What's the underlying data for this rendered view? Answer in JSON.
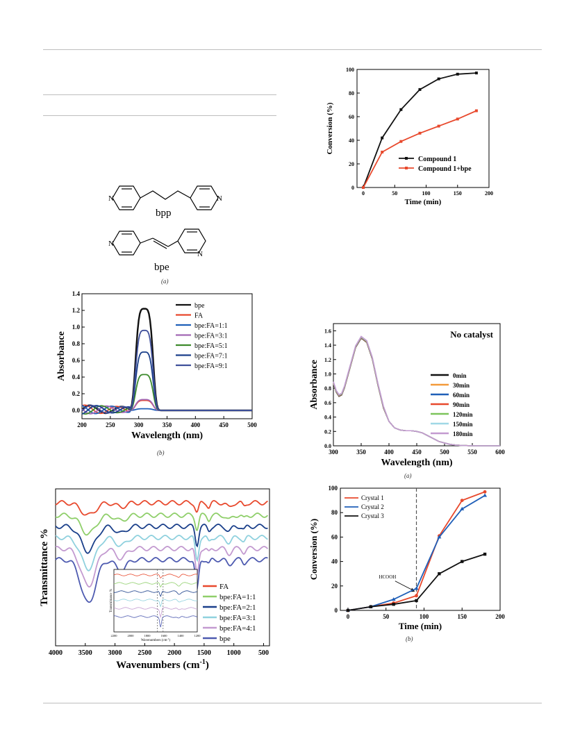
{
  "colors": {
    "black": "#111111",
    "red": "#e8492d",
    "blue": "#1f5fb8",
    "navy": "#1a3f8a",
    "purple": "#a268b5",
    "green": "#3d8a2c",
    "slate": "#3f4f9a",
    "orange": "#f39a3a",
    "lime": "#7cc45a",
    "lightcyan": "#9fd8e6",
    "lavender": "#c39ad0",
    "royal": "#4d5ab0",
    "ltgreen": "#8fcf6a",
    "cyan": "#8fd1de"
  },
  "structures": {
    "top": {
      "label": "bpp",
      "n_left": "N",
      "n_right": "N"
    },
    "bottom": {
      "label": "bpe",
      "n_left": "N",
      "n_right": "N"
    },
    "caption": "(a)"
  },
  "captions": {
    "uv_bpe_fa": "(b)",
    "uv_no_catalyst": "(a)",
    "conversion_crystals": "(b)"
  },
  "charts": {
    "conversion_compound": {
      "xlabel": "Time (min)",
      "ylabel": "Conversion (%)",
      "xticks": [
        "0",
        "50",
        "100",
        "150",
        "200"
      ],
      "yticks": [
        "0",
        "20",
        "40",
        "60",
        "80",
        "100"
      ]
    },
    "uv_bpe_fa": {
      "xlabel": "Wavelength (nm)",
      "ylabel": "Absorbance",
      "xticks": [
        "200",
        "250",
        "300",
        "350",
        "400",
        "450",
        "500"
      ],
      "yticks": [
        "0.0",
        "0.2",
        "0.4",
        "0.6",
        "0.8",
        "1.0",
        "1.2",
        "1.4"
      ]
    },
    "uv_no_catalyst": {
      "xlabel": "Wavelength (nm)",
      "ylabel": "Absorbance",
      "annotation": "No catalyst",
      "xticks": [
        "300",
        "350",
        "400",
        "450",
        "500",
        "550",
        "600"
      ],
      "yticks": [
        "0.0",
        "0.2",
        "0.4",
        "0.6",
        "0.8",
        "1.0",
        "1.2",
        "1.4",
        "1.6"
      ]
    },
    "ftir": {
      "xlabel": "Wavenumbers (cm",
      "xlabel_sup": "-1",
      "xlabel_end": ")",
      "ylabel": "Transmittance %",
      "xticks": [
        "4000",
        "3500",
        "3000",
        "2500",
        "2000",
        "1500",
        "1000",
        "500"
      ],
      "inset": {
        "ylabel": "Transmittance %",
        "xlabel": "Wavenumbers (cm",
        "xlabel_sup": "-1",
        "xlabel_end": ")",
        "xticks": [
          "2200",
          "2000",
          "1800",
          "1600",
          "1400",
          "1200"
        ]
      }
    },
    "conversion_crystals": {
      "xlabel": "Time (min)",
      "ylabel": "Conversion (%)",
      "annotation": "HCOOH",
      "xticks": [
        "0",
        "50",
        "100",
        "150",
        "200"
      ],
      "yticks": [
        "0",
        "20",
        "40",
        "60",
        "80",
        "100"
      ]
    }
  },
  "chart_data": [
    {
      "type": "line",
      "x": [
        0,
        30,
        60,
        90,
        120,
        150,
        180
      ],
      "series": [
        {
          "name": "Compound 1",
          "values": [
            0,
            42,
            66,
            83,
            92,
            96,
            97
          ]
        },
        {
          "name": "Compound 1+bpe",
          "values": [
            0,
            30,
            39,
            46,
            52,
            58,
            65
          ]
        }
      ],
      "xlabel": "Time (min)",
      "ylabel": "Conversion (%)",
      "xlim": [
        -10,
        200
      ],
      "ylim": [
        0,
        100
      ],
      "legend": "bottom-right"
    },
    {
      "type": "line",
      "series": [
        {
          "name": "bpe",
          "peak": 1.22
        },
        {
          "name": "FA",
          "peak": 0.12
        },
        {
          "name": "bpe:FA=1:1",
          "peak": 0.02
        },
        {
          "name": "bpe:FA=3:1",
          "peak": 0.13
        },
        {
          "name": "bpe:FA=5:1",
          "peak": 0.43
        },
        {
          "name": "bpe:FA=7:1",
          "peak": 0.7
        },
        {
          "name": "bpe:FA=9:1",
          "peak": 0.96
        }
      ],
      "peak_x": 310,
      "xlabel": "Wavelength (nm)",
      "ylabel": "Absorbance",
      "xlim": [
        200,
        500
      ],
      "ylim": [
        -0.1,
        1.4
      ],
      "legend": "top-right"
    },
    {
      "type": "line",
      "series": [
        {
          "name": "0min"
        },
        {
          "name": "30min"
        },
        {
          "name": "60min"
        },
        {
          "name": "90min"
        },
        {
          "name": "120min"
        },
        {
          "name": "150min"
        },
        {
          "name": "180min"
        }
      ],
      "profile_x": [
        300,
        305,
        310,
        315,
        320,
        330,
        340,
        350,
        360,
        370,
        380,
        390,
        400,
        410,
        420,
        430,
        440,
        450,
        460,
        470,
        480,
        490,
        500,
        510,
        520,
        530,
        550,
        600
      ],
      "profile_y": [
        0.88,
        0.76,
        0.7,
        0.72,
        0.82,
        1.1,
        1.38,
        1.51,
        1.45,
        1.22,
        0.86,
        0.54,
        0.34,
        0.25,
        0.22,
        0.21,
        0.21,
        0.2,
        0.18,
        0.14,
        0.1,
        0.06,
        0.04,
        0.02,
        0.01,
        0.005,
        0.0,
        0.0
      ],
      "annotation": "No catalyst",
      "xlabel": "Wavelength (nm)",
      "ylabel": "Absorbance",
      "xlim": [
        300,
        600
      ],
      "ylim": [
        0,
        1.7
      ],
      "legend": "right"
    },
    {
      "type": "line",
      "series": [
        {
          "name": "FA"
        },
        {
          "name": "bpe:FA=1:1"
        },
        {
          "name": "bpe:FA=2:1"
        },
        {
          "name": "bpe:FA=3:1"
        },
        {
          "name": "bpe:FA=4:1"
        },
        {
          "name": "bpe"
        }
      ],
      "xlabel": "Wavenumbers (cm-1)",
      "ylabel": "Transmittance %",
      "xlim": [
        4000,
        400
      ],
      "legend": "bottom-right",
      "inset": true
    },
    {
      "type": "line",
      "x": [
        0,
        30,
        60,
        90,
        120,
        150,
        180
      ],
      "series": [
        {
          "name": "Crystal 1",
          "values": [
            0,
            3,
            6,
            12,
            61,
            90,
            97
          ]
        },
        {
          "name": "Crystal 2",
          "values": [
            0,
            3,
            9,
            18,
            60,
            83,
            94
          ]
        },
        {
          "name": "Crystal 3",
          "values": [
            0,
            3,
            5,
            8,
            30,
            40,
            46
          ]
        }
      ],
      "annotation": "HCOOH",
      "xlabel": "Time (min)",
      "ylabel": "Conversion (%)",
      "xlim": [
        -10,
        200
      ],
      "ylim": [
        0,
        100
      ],
      "legend": "top-left"
    }
  ]
}
